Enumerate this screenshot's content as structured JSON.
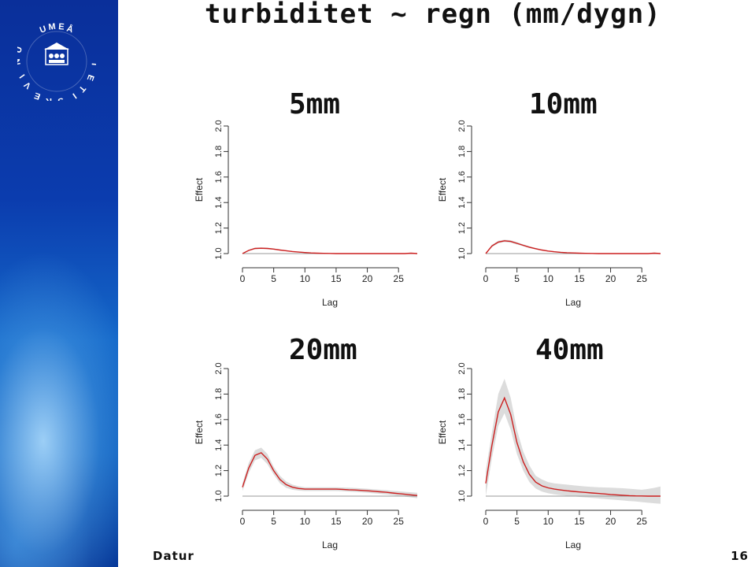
{
  "slide": {
    "title": "turbiditet ~ regn (mm/dygn)",
    "footer_left": "Datur",
    "page_number": "16",
    "logo_text": "UMEÅ UNIVERSITET"
  },
  "chart_data": [
    {
      "type": "line",
      "label": "5mm",
      "xlabel": "Lag",
      "ylabel": "Effect",
      "xlim": [
        0,
        28
      ],
      "ylim": [
        1.0,
        2.0
      ],
      "xticks": [
        "0",
        "5",
        "10",
        "15",
        "20",
        "25"
      ],
      "yticks": [
        "1.0",
        "1.2",
        "1.4",
        "1.6",
        "1.8",
        "2.0"
      ],
      "x": [
        0,
        1,
        2,
        3,
        4,
        5,
        6,
        7,
        8,
        9,
        10,
        11,
        12,
        13,
        14,
        15,
        16,
        17,
        18,
        19,
        20,
        21,
        22,
        23,
        24,
        25,
        26,
        27,
        28
      ],
      "y": [
        1.0,
        1.025,
        1.04,
        1.042,
        1.04,
        1.035,
        1.028,
        1.022,
        1.016,
        1.012,
        1.008,
        1.005,
        1.003,
        1.002,
        1.001,
        1.0,
        1.0,
        1.0,
        1.0,
        1.0,
        1.0,
        1.0,
        1.0,
        1.0,
        1.0,
        1.0,
        1.0,
        1.003,
        1.0
      ],
      "lower": [
        1.0,
        1.02,
        1.034,
        1.036,
        1.034,
        1.03,
        1.024,
        1.018,
        1.013,
        1.009,
        1.005,
        1.003,
        1.001,
        1.0,
        1.0,
        0.999,
        0.999,
        0.999,
        0.999,
        0.999,
        0.999,
        0.999,
        0.999,
        0.999,
        0.999,
        0.999,
        0.999,
        1.0,
        0.998
      ],
      "upper": [
        1.0,
        1.03,
        1.046,
        1.048,
        1.046,
        1.04,
        1.032,
        1.026,
        1.02,
        1.015,
        1.011,
        1.007,
        1.005,
        1.004,
        1.002,
        1.001,
        1.001,
        1.001,
        1.001,
        1.001,
        1.001,
        1.001,
        1.001,
        1.001,
        1.001,
        1.001,
        1.001,
        1.006,
        1.002
      ]
    },
    {
      "type": "line",
      "label": "10mm",
      "xlabel": "Lag",
      "ylabel": "Effect",
      "xlim": [
        0,
        28
      ],
      "ylim": [
        1.0,
        2.0
      ],
      "xticks": [
        "0",
        "5",
        "10",
        "15",
        "20",
        "25"
      ],
      "yticks": [
        "1.0",
        "1.2",
        "1.4",
        "1.6",
        "1.8",
        "2.0"
      ],
      "x": [
        0,
        1,
        2,
        3,
        4,
        5,
        6,
        7,
        8,
        9,
        10,
        11,
        12,
        13,
        14,
        15,
        16,
        17,
        18,
        19,
        20,
        21,
        22,
        23,
        24,
        25,
        26,
        27,
        28
      ],
      "y": [
        1.0,
        1.06,
        1.09,
        1.1,
        1.095,
        1.08,
        1.065,
        1.05,
        1.038,
        1.028,
        1.02,
        1.014,
        1.01,
        1.007,
        1.005,
        1.003,
        1.002,
        1.001,
        1.0,
        1.0,
        1.0,
        1.0,
        1.0,
        1.0,
        1.0,
        1.0,
        1.0,
        1.003,
        1.0
      ],
      "lower": [
        1.0,
        1.05,
        1.08,
        1.09,
        1.085,
        1.071,
        1.057,
        1.043,
        1.032,
        1.023,
        1.016,
        1.01,
        1.007,
        1.004,
        1.002,
        1.001,
        1.0,
        0.999,
        0.998,
        0.998,
        0.998,
        0.998,
        0.998,
        0.998,
        0.998,
        0.998,
        0.998,
        1.0,
        0.997
      ],
      "upper": [
        1.0,
        1.07,
        1.1,
        1.11,
        1.105,
        1.09,
        1.073,
        1.057,
        1.044,
        1.033,
        1.024,
        1.018,
        1.013,
        1.01,
        1.008,
        1.005,
        1.004,
        1.003,
        1.002,
        1.002,
        1.002,
        1.002,
        1.002,
        1.002,
        1.002,
        1.002,
        1.002,
        1.006,
        1.003
      ]
    },
    {
      "type": "line",
      "label": "20mm",
      "xlabel": "Lag",
      "ylabel": "Effect",
      "xlim": [
        0,
        28
      ],
      "ylim": [
        1.0,
        2.0
      ],
      "xticks": [
        "0",
        "5",
        "10",
        "15",
        "20",
        "25"
      ],
      "yticks": [
        "1.0",
        "1.2",
        "1.4",
        "1.6",
        "1.8",
        "2.0"
      ],
      "x": [
        0,
        1,
        2,
        3,
        4,
        5,
        6,
        7,
        8,
        9,
        10,
        11,
        12,
        13,
        14,
        15,
        16,
        17,
        18,
        19,
        20,
        21,
        22,
        23,
        24,
        25,
        26,
        27,
        28
      ],
      "y": [
        1.07,
        1.22,
        1.32,
        1.34,
        1.29,
        1.2,
        1.13,
        1.09,
        1.07,
        1.06,
        1.055,
        1.055,
        1.055,
        1.055,
        1.055,
        1.055,
        1.053,
        1.05,
        1.048,
        1.045,
        1.042,
        1.038,
        1.034,
        1.03,
        1.025,
        1.02,
        1.015,
        1.01,
        1.005
      ],
      "lower": [
        1.04,
        1.18,
        1.28,
        1.3,
        1.25,
        1.17,
        1.1,
        1.065,
        1.05,
        1.043,
        1.04,
        1.04,
        1.04,
        1.04,
        1.04,
        1.04,
        1.038,
        1.035,
        1.033,
        1.03,
        1.026,
        1.022,
        1.018,
        1.013,
        1.008,
        1.002,
        0.996,
        0.99,
        0.984
      ],
      "upper": [
        1.1,
        1.26,
        1.36,
        1.38,
        1.33,
        1.23,
        1.16,
        1.115,
        1.09,
        1.077,
        1.07,
        1.07,
        1.07,
        1.07,
        1.07,
        1.07,
        1.068,
        1.066,
        1.064,
        1.061,
        1.058,
        1.054,
        1.05,
        1.047,
        1.042,
        1.038,
        1.034,
        1.03,
        1.026
      ]
    },
    {
      "type": "line",
      "label": "40mm",
      "xlabel": "Lag",
      "ylabel": "Effect",
      "xlim": [
        0,
        28
      ],
      "ylim": [
        1.0,
        2.0
      ],
      "xticks": [
        "0",
        "5",
        "10",
        "15",
        "20",
        "25"
      ],
      "yticks": [
        "1.0",
        "1.2",
        "1.4",
        "1.6",
        "1.8",
        "2.0"
      ],
      "x": [
        0,
        1,
        2,
        3,
        4,
        5,
        6,
        7,
        8,
        9,
        10,
        11,
        12,
        13,
        14,
        15,
        16,
        17,
        18,
        19,
        20,
        21,
        22,
        23,
        24,
        25,
        26,
        27,
        28
      ],
      "y": [
        1.1,
        1.4,
        1.66,
        1.77,
        1.64,
        1.42,
        1.27,
        1.17,
        1.11,
        1.08,
        1.065,
        1.055,
        1.048,
        1.042,
        1.037,
        1.033,
        1.029,
        1.025,
        1.021,
        1.017,
        1.013,
        1.01,
        1.007,
        1.004,
        1.002,
        1.001,
        1.0,
        1.0,
        1.0
      ],
      "lower": [
        1.0,
        1.3,
        1.55,
        1.65,
        1.52,
        1.33,
        1.2,
        1.11,
        1.06,
        1.035,
        1.022,
        1.014,
        1.008,
        1.003,
        0.998,
        0.994,
        0.99,
        0.986,
        0.982,
        0.978,
        0.974,
        0.97,
        0.966,
        0.962,
        0.958,
        0.953,
        0.948,
        0.944,
        0.94
      ],
      "upper": [
        1.2,
        1.5,
        1.8,
        1.92,
        1.77,
        1.52,
        1.35,
        1.24,
        1.16,
        1.13,
        1.11,
        1.1,
        1.095,
        1.09,
        1.085,
        1.08,
        1.076,
        1.073,
        1.07,
        1.068,
        1.066,
        1.064,
        1.062,
        1.058,
        1.054,
        1.05,
        1.056,
        1.065,
        1.075
      ]
    }
  ],
  "colors": {
    "line": "#cc1f1f",
    "band": "#dcdcdc",
    "sidebar": "#0b3cae"
  }
}
